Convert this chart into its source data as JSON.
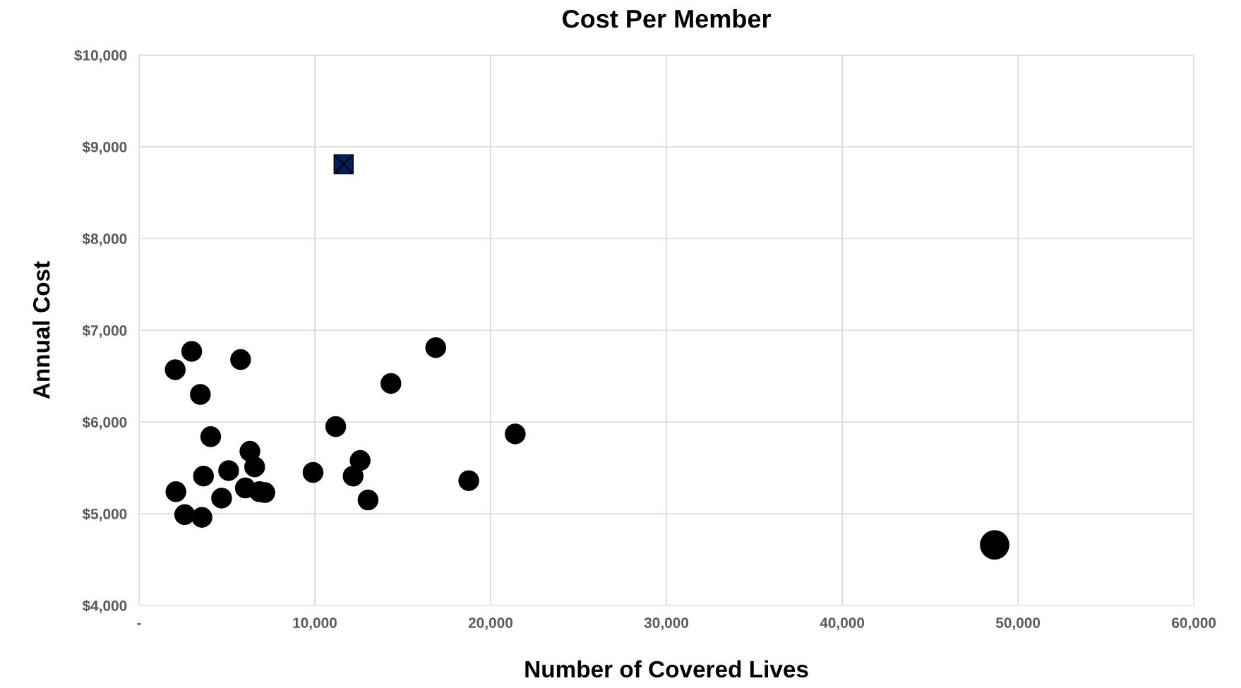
{
  "chart_data": {
    "type": "bubble",
    "title": "Cost Per Member",
    "xlabel": "Number of Covered Lives",
    "ylabel": "Annual Cost",
    "series": [
      {
        "color": "#000000",
        "x": [
          2060,
          3000,
          3490,
          5780,
          4080,
          2100,
          2600,
          3580,
          3670,
          4700,
          5100,
          6050,
          6310,
          6580,
          6850,
          7160,
          9900,
          11190,
          12180,
          12580,
          13030,
          14330,
          16880,
          18760,
          21400,
          48670
        ],
        "values": [
          6570,
          6770,
          6300,
          6680,
          5840,
          5240,
          4990,
          4960,
          5410,
          5170,
          5470,
          5280,
          5680,
          5510,
          5240,
          5230,
          5450,
          5950,
          5410,
          5580,
          5150,
          6420,
          6810,
          5360,
          5870,
          4660
        ],
        "sizes": [
          0.5,
          0.5,
          0.5,
          0.5,
          0.5,
          0.5,
          0.5,
          0.5,
          0.5,
          0.5,
          0.5,
          0.5,
          0.5,
          0.5,
          0.5,
          0.5,
          0.5,
          0.5,
          0.5,
          0.5,
          0.5,
          0.5,
          0.5,
          0.5,
          0.5,
          1
        ]
      },
      {
        "type": "scatter",
        "color": "#002060",
        "marker": "square",
        "x": [
          11640
        ],
        "values": [
          8810
        ]
      }
    ],
    "xlim": [
      0,
      60000
    ],
    "xticks": [
      {
        "value": 0,
        "label": "-"
      },
      {
        "value": 10000,
        "label": "10,000"
      },
      {
        "value": 20000,
        "label": "20,000"
      },
      {
        "value": 30000,
        "label": "30,000"
      },
      {
        "value": 40000,
        "label": "40,000"
      },
      {
        "value": 50000,
        "label": "50,000"
      },
      {
        "value": 60000,
        "label": "60,000"
      }
    ],
    "ylim": [
      4000,
      10000
    ],
    "yticks": [
      {
        "value": 4000,
        "label": "$4,000"
      },
      {
        "value": 5000,
        "label": "$5,000"
      },
      {
        "value": 6000,
        "label": "$6,000"
      },
      {
        "value": 7000,
        "label": "$7,000"
      },
      {
        "value": 8000,
        "label": "$8,000"
      },
      {
        "value": 9000,
        "label": "$9,000"
      },
      {
        "value": 10000,
        "label": "$10,000"
      }
    ],
    "grid": true
  }
}
